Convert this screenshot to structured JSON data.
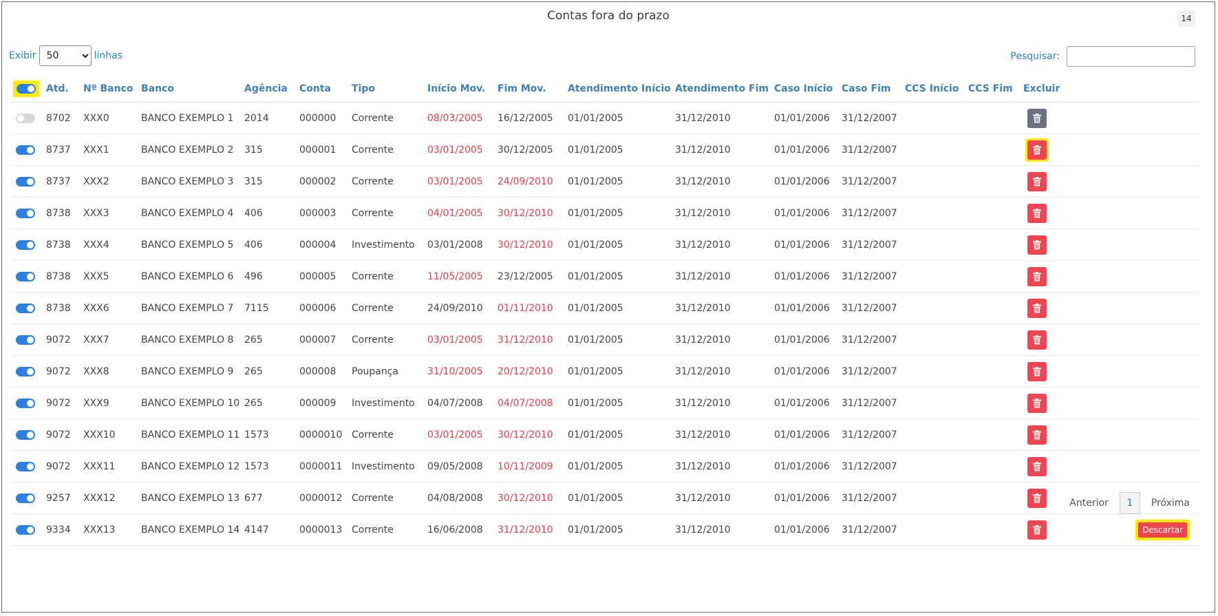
{
  "header": {
    "title": "Contas fora do prazo",
    "count_badge": "14"
  },
  "controls": {
    "show_label": "Exibir",
    "show_value": "50",
    "show_suffix": "linhas",
    "search_label": "Pesquisar:",
    "search_value": ""
  },
  "table": {
    "columns": [
      "Atd.",
      "Nº Banco",
      "Banco",
      "Agência",
      "Conta",
      "Tipo",
      "Início Mov.",
      "Fim Mov.",
      "Atendimento Início",
      "Atendimento Fim",
      "Caso Início",
      "Caso Fim",
      "CCS Início",
      "CCS Fim",
      "Excluir"
    ],
    "rows": [
      {
        "on": false,
        "atd": "8702",
        "nb": "XXX0",
        "banco": "BANCO EXEMPLO 1",
        "ag": "2014",
        "conta": "000000",
        "tipo": "Corrente",
        "ini": "08/03/2005",
        "ini_red": true,
        "fim": "16/12/2005",
        "fim_red": false,
        "ai": "01/01/2005",
        "af": "31/12/2010",
        "ci": "01/01/2006",
        "cf": "31/12/2007",
        "ccsi": "",
        "ccsf": ""
      },
      {
        "on": true,
        "atd": "8737",
        "nb": "XXX1",
        "banco": "BANCO EXEMPLO 2",
        "ag": "315",
        "conta": "000001",
        "tipo": "Corrente",
        "ini": "03/01/2005",
        "ini_red": true,
        "fim": "30/12/2005",
        "fim_red": false,
        "ai": "01/01/2005",
        "af": "31/12/2010",
        "ci": "01/01/2006",
        "cf": "31/12/2007",
        "ccsi": "",
        "ccsf": ""
      },
      {
        "on": true,
        "atd": "8737",
        "nb": "XXX2",
        "banco": "BANCO EXEMPLO 3",
        "ag": "315",
        "conta": "000002",
        "tipo": "Corrente",
        "ini": "03/01/2005",
        "ini_red": true,
        "fim": "24/09/2010",
        "fim_red": true,
        "ai": "01/01/2005",
        "af": "31/12/2010",
        "ci": "01/01/2006",
        "cf": "31/12/2007",
        "ccsi": "",
        "ccsf": ""
      },
      {
        "on": true,
        "atd": "8738",
        "nb": "XXX3",
        "banco": "BANCO EXEMPLO 4",
        "ag": "406",
        "conta": "000003",
        "tipo": "Corrente",
        "ini": "04/01/2005",
        "ini_red": true,
        "fim": "30/12/2010",
        "fim_red": true,
        "ai": "01/01/2005",
        "af": "31/12/2010",
        "ci": "01/01/2006",
        "cf": "31/12/2007",
        "ccsi": "",
        "ccsf": ""
      },
      {
        "on": true,
        "atd": "8738",
        "nb": "XXX4",
        "banco": "BANCO EXEMPLO 5",
        "ag": "406",
        "conta": "000004",
        "tipo": "Investimento",
        "ini": "03/01/2008",
        "ini_red": false,
        "fim": "30/12/2010",
        "fim_red": true,
        "ai": "01/01/2005",
        "af": "31/12/2010",
        "ci": "01/01/2006",
        "cf": "31/12/2007",
        "ccsi": "",
        "ccsf": ""
      },
      {
        "on": true,
        "atd": "8738",
        "nb": "XXX5",
        "banco": "BANCO EXEMPLO 6",
        "ag": "496",
        "conta": "000005",
        "tipo": "Corrente",
        "ini": "11/05/2005",
        "ini_red": true,
        "fim": "23/12/2005",
        "fim_red": false,
        "ai": "01/01/2005",
        "af": "31/12/2010",
        "ci": "01/01/2006",
        "cf": "31/12/2007",
        "ccsi": "",
        "ccsf": ""
      },
      {
        "on": true,
        "atd": "8738",
        "nb": "XXX6",
        "banco": "BANCO EXEMPLO 7",
        "ag": "7115",
        "conta": "000006",
        "tipo": "Corrente",
        "ini": "24/09/2010",
        "ini_red": false,
        "fim": "01/11/2010",
        "fim_red": true,
        "ai": "01/01/2005",
        "af": "31/12/2010",
        "ci": "01/01/2006",
        "cf": "31/12/2007",
        "ccsi": "",
        "ccsf": ""
      },
      {
        "on": true,
        "atd": "9072",
        "nb": "XXX7",
        "banco": "BANCO EXEMPLO 8",
        "ag": "265",
        "conta": "000007",
        "tipo": "Corrente",
        "ini": "03/01/2005",
        "ini_red": true,
        "fim": "31/12/2010",
        "fim_red": true,
        "ai": "01/01/2005",
        "af": "31/12/2010",
        "ci": "01/01/2006",
        "cf": "31/12/2007",
        "ccsi": "",
        "ccsf": ""
      },
      {
        "on": true,
        "atd": "9072",
        "nb": "XXX8",
        "banco": "BANCO EXEMPLO 9",
        "ag": "265",
        "conta": "000008",
        "tipo": "Poupança",
        "ini": "31/10/2005",
        "ini_red": true,
        "fim": "20/12/2010",
        "fim_red": true,
        "ai": "01/01/2005",
        "af": "31/12/2010",
        "ci": "01/01/2006",
        "cf": "31/12/2007",
        "ccsi": "",
        "ccsf": ""
      },
      {
        "on": true,
        "atd": "9072",
        "nb": "XXX9",
        "banco": "BANCO EXEMPLO 10",
        "ag": "265",
        "conta": "000009",
        "tipo": "Investimento",
        "ini": "04/07/2008",
        "ini_red": false,
        "fim": "04/07/2008",
        "fim_red": true,
        "ai": "01/01/2005",
        "af": "31/12/2010",
        "ci": "01/01/2006",
        "cf": "31/12/2007",
        "ccsi": "",
        "ccsf": ""
      },
      {
        "on": true,
        "atd": "9072",
        "nb": "XXX10",
        "banco": "BANCO EXEMPLO 11",
        "ag": "1573",
        "conta": "0000010",
        "tipo": "Corrente",
        "ini": "03/01/2005",
        "ini_red": true,
        "fim": "30/12/2010",
        "fim_red": true,
        "ai": "01/01/2005",
        "af": "31/12/2010",
        "ci": "01/01/2006",
        "cf": "31/12/2007",
        "ccsi": "",
        "ccsf": ""
      },
      {
        "on": true,
        "atd": "9072",
        "nb": "XXX11",
        "banco": "BANCO EXEMPLO 12",
        "ag": "1573",
        "conta": "0000011",
        "tipo": "Investimento",
        "ini": "09/05/2008",
        "ini_red": false,
        "fim": "10/11/2009",
        "fim_red": true,
        "ai": "01/01/2005",
        "af": "31/12/2010",
        "ci": "01/01/2006",
        "cf": "31/12/2007",
        "ccsi": "",
        "ccsf": ""
      },
      {
        "on": true,
        "atd": "9257",
        "nb": "XXX12",
        "banco": "BANCO EXEMPLO 13",
        "ag": "677",
        "conta": "0000012",
        "tipo": "Corrente",
        "ini": "04/08/2008",
        "ini_red": false,
        "fim": "30/12/2010",
        "fim_red": true,
        "ai": "01/01/2005",
        "af": "31/12/2010",
        "ci": "01/01/2006",
        "cf": "31/12/2007",
        "ccsi": "",
        "ccsf": ""
      },
      {
        "on": true,
        "atd": "9334",
        "nb": "XXX13",
        "banco": "BANCO EXEMPLO 14",
        "ag": "4147",
        "conta": "0000013",
        "tipo": "Corrente",
        "ini": "16/06/2008",
        "ini_red": false,
        "fim": "31/12/2010",
        "fim_red": true,
        "ai": "01/01/2005",
        "af": "31/12/2010",
        "ci": "01/01/2006",
        "cf": "31/12/2007",
        "ccsi": "",
        "ccsf": ""
      }
    ]
  },
  "pagination": {
    "prev_label": "Anterior",
    "current_page": "1",
    "next_label": "Próxima"
  },
  "actions": {
    "discard_label": "Descartar"
  },
  "colors": {
    "accent_blue": "#2f7fe0",
    "date_red": "#e0404a",
    "delete_red": "#ef4550",
    "highlight_yellow": "#ffeb00"
  },
  "icons": {
    "delete": "trash-icon",
    "toggle": "toggle-switch"
  }
}
